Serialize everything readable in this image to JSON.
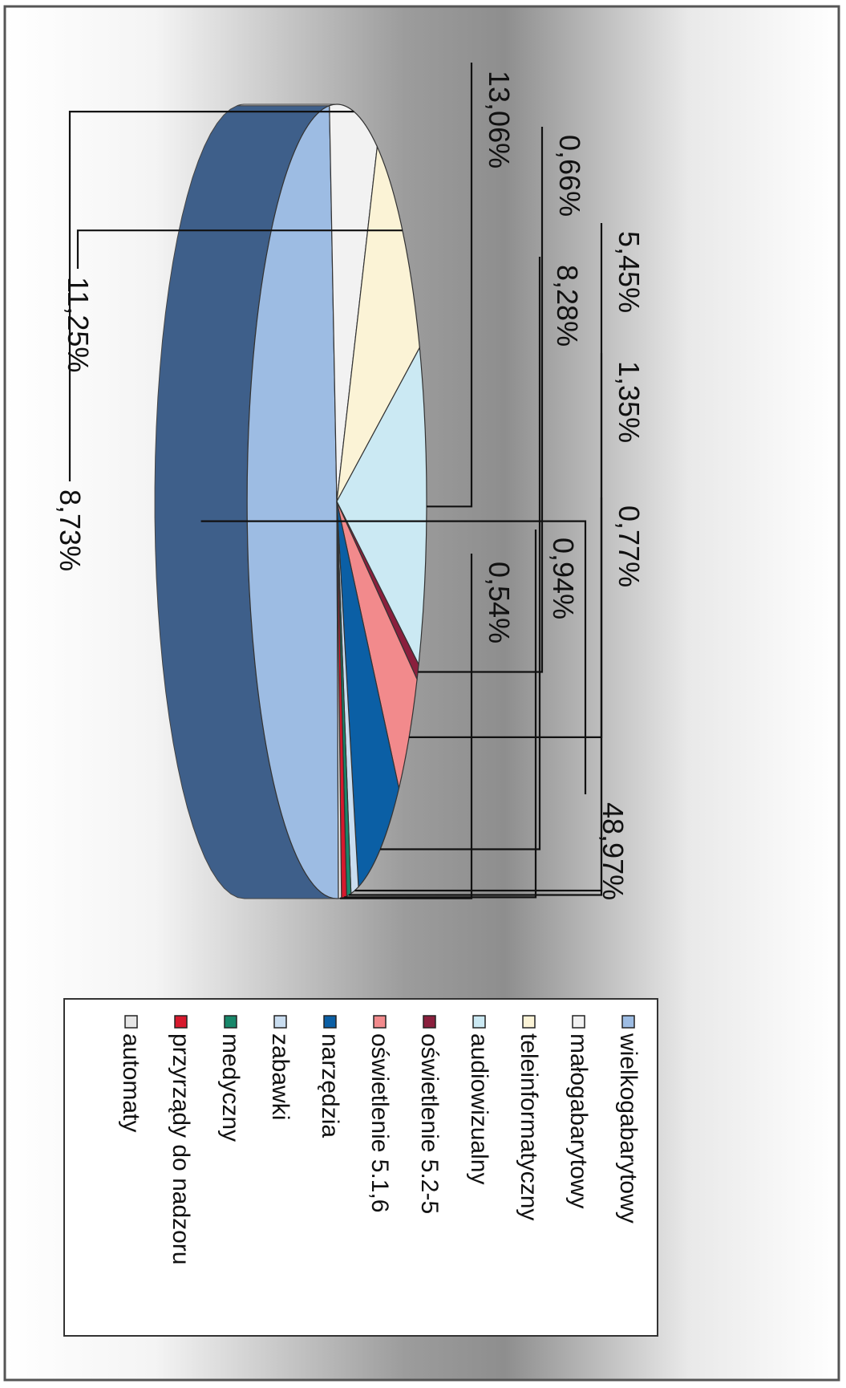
{
  "chart_data": {
    "type": "pie",
    "title": "",
    "labels": [
      "wielkogabarytowy",
      "małogabarytowy",
      "teleinformatyczny",
      "audiowizualny",
      "oświetlenie 5.2-5",
      "oświetlenie 5.1,6",
      "narzędzia",
      "zabawki",
      "medyczny",
      "przyrządy do nadzoru",
      "automaty"
    ],
    "values": [
      48.97,
      8.73,
      11.25,
      13.06,
      0.66,
      5.45,
      8.28,
      1.35,
      0.77,
      0.94,
      0.54
    ],
    "value_labels": [
      "48,97%",
      "8,73%",
      "11,25%",
      "13,06%",
      "0,66%",
      "5,45%",
      "8,28%",
      "1,35%",
      "0,77%",
      "0,94%",
      "0,54%"
    ],
    "colors": [
      "#9DBCE3",
      "#F2F2F2",
      "#FBF3D6",
      "#CBE9F3",
      "#8A1F3D",
      "#F28A8C",
      "#0B5FA5",
      "#C9DDF0",
      "#17876A",
      "#D7192D",
      "#E6E6E6"
    ],
    "side_colors": [
      "#3E5F8A",
      "#CFCFCF",
      "#EFE3B4",
      "#A8D3E2",
      "#5E1228",
      "#C96668",
      "#083F70",
      "#9FB7CF",
      "#0F5C48",
      "#9A1220",
      "#BDBDBD"
    ],
    "effect": "3d",
    "legend": "bottom"
  }
}
